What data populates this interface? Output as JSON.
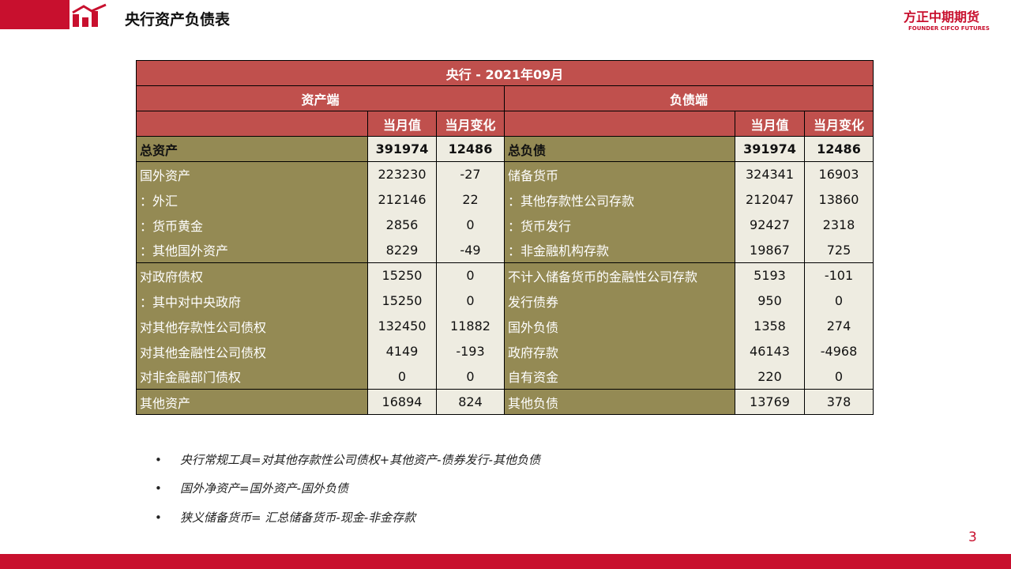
{
  "header": {
    "title": "央行资产负债表",
    "logo": "方正中期期货",
    "logo_sub": "FOUNDER CIFCO FUTURES"
  },
  "table": {
    "title": "央行 - 2021年09月",
    "left_header": "资产端",
    "right_header": "负债端",
    "columns": [
      "当月值",
      "当月变化",
      "当月值",
      "当月变化"
    ],
    "rows": [
      [
        "总资产",
        391974,
        12486,
        "总负债",
        391974,
        12486
      ],
      [
        "国外资产",
        223230,
        -27,
        "储备货币",
        324341,
        16903
      ],
      [
        "：外汇",
        212146,
        22,
        "：其他存款性公司存款",
        212047,
        13860
      ],
      [
        "：货币黄金",
        2856,
        0,
        "：货币发行",
        92427,
        2318
      ],
      [
        "：其他国外资产",
        8229,
        -49,
        "：非金融机构存款",
        19867,
        725
      ],
      [
        "对政府债权",
        15250,
        0,
        "不计入储备货币的金融性公司存款",
        5193,
        -101
      ],
      [
        "：其中对中央政府",
        15250,
        0,
        "发行债券",
        950,
        0
      ],
      [
        "对其他存款性公司债权",
        132450,
        11882,
        "国外负债",
        1358,
        274
      ],
      [
        "对其他金融性公司债权",
        4149,
        -193,
        "政府存款",
        46143,
        -4968
      ],
      [
        "对非金融部门债权",
        0,
        0,
        "自有资金",
        220,
        0
      ],
      [
        "其他资产",
        16894,
        824,
        "其他负债",
        13769,
        378
      ]
    ]
  },
  "notes": [
    "央行常规工具=对其他存款性公司债权+其他资产-债券发行-其他负债",
    "国外净资产=国外资产-国外负债",
    "狭义储备货币= 汇总储备货币-现金-非金存款"
  ],
  "page_number": "3"
}
